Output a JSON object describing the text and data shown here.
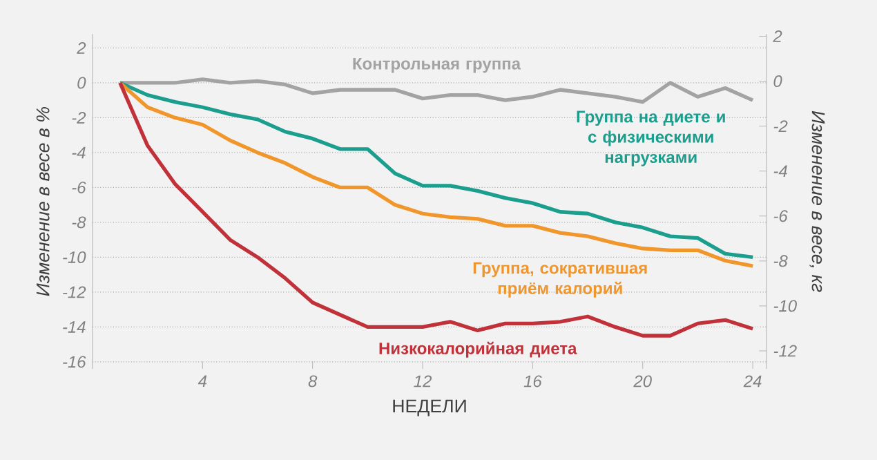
{
  "chart_data": {
    "type": "line",
    "xlabel": "НЕДЕЛИ",
    "ylabel": "Изменение в весе в %",
    "y2label": "Изменение в весе, кг",
    "x": [
      1,
      2,
      3,
      4,
      5,
      6,
      7,
      8,
      9,
      10,
      11,
      12,
      13,
      14,
      15,
      16,
      17,
      18,
      19,
      20,
      21,
      22,
      23,
      24
    ],
    "series": [
      {
        "name": "Контрольная группа",
        "color": "#a3a3a3",
        "values": [
          0,
          0,
          0,
          0.2,
          0,
          0.1,
          -0.1,
          -0.6,
          -0.4,
          -0.4,
          -0.4,
          -0.9,
          -0.7,
          -0.7,
          -1.0,
          -0.8,
          -0.4,
          -0.6,
          -0.8,
          -1.1,
          0,
          -0.8,
          -0.3,
          -1.0
        ]
      },
      {
        "name": "Группа на диете и с физическими нагрузками",
        "color": "#1b9e8e",
        "values": [
          0,
          -0.7,
          -1.1,
          -1.4,
          -1.8,
          -2.1,
          -2.8,
          -3.2,
          -3.8,
          -3.8,
          -5.2,
          -5.9,
          -5.9,
          -6.2,
          -6.6,
          -6.9,
          -7.4,
          -7.5,
          -8.0,
          -8.3,
          -8.8,
          -8.9,
          -9.8,
          -10.0
        ]
      },
      {
        "name": "Группа, сократившая приём калорий",
        "color": "#f0962a",
        "values": [
          0,
          -1.4,
          -2.0,
          -2.4,
          -3.3,
          -4.0,
          -4.6,
          -5.4,
          -6.0,
          -6.0,
          -7.0,
          -7.5,
          -7.7,
          -7.8,
          -8.2,
          -8.2,
          -8.6,
          -8.8,
          -9.2,
          -9.5,
          -9.6,
          -9.6,
          -10.2,
          -10.5
        ]
      },
      {
        "name": "Низкокалорийная диета",
        "color": "#c0313a",
        "values": [
          0,
          -3.6,
          -5.8,
          -7.4,
          -9.0,
          -10.0,
          -11.2,
          -12.6,
          -13.3,
          -14.0,
          -14.0,
          -14.0,
          -13.7,
          -14.2,
          -13.8,
          -13.8,
          -13.7,
          -13.4,
          -14.0,
          -14.5,
          -14.5,
          -13.8,
          -13.6,
          -14.1
        ]
      }
    ],
    "xlim": [
      0,
      24.5
    ],
    "xticks": [
      4,
      8,
      12,
      16,
      20,
      24
    ],
    "ylim": [
      -16.4,
      2.8
    ],
    "yticks": [
      -16,
      -14,
      -12,
      -10,
      -8,
      -6,
      -4,
      -2,
      0,
      2
    ],
    "y2lim": [
      -12.8,
      2.1
    ],
    "y2ticks": [
      -12,
      -10,
      -8,
      -6,
      -4,
      -2,
      0,
      2
    ],
    "grid": "y",
    "legend": false,
    "marker": "none",
    "line_style": "solid"
  }
}
